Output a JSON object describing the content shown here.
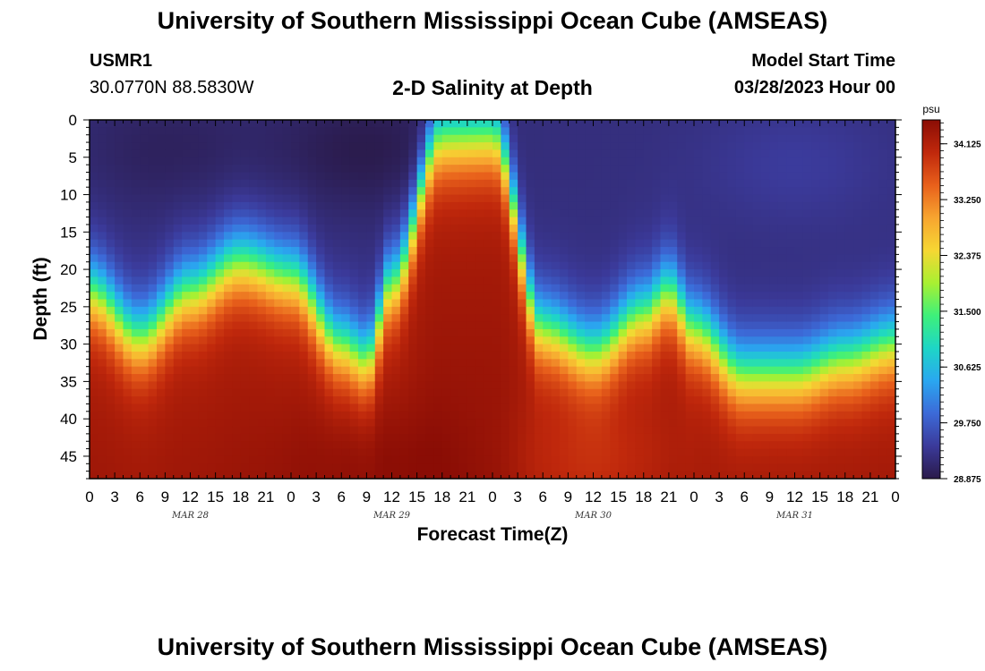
{
  "header": {
    "title": "University of Southern Mississippi Ocean Cube (AMSEAS)",
    "station": "USMR1",
    "coords": "30.0770N  88.5830W",
    "subtitle": "2-D Salinity at Depth",
    "model_start_label": "Model Start Time",
    "model_start_value": "03/28/2023 Hour 00"
  },
  "footer": {
    "title": "University of Southern Mississippi Ocean Cube (AMSEAS)"
  },
  "colors": {
    "palette": [
      "#2a1a4a",
      "#3b3a9a",
      "#3c6ad8",
      "#2aa7f0",
      "#1ed6c6",
      "#3ef07a",
      "#a8f032",
      "#f6d733",
      "#f7a530",
      "#e8601b",
      "#c0280c",
      "#8a0d05"
    ]
  },
  "chart_data": {
    "type": "heatmap",
    "title": "2-D Salinity at Depth",
    "xlabel": "Forecast Time(Z)",
    "ylabel": "Depth (ft)",
    "xlim": [
      0,
      96
    ],
    "ylim": [
      0,
      48
    ],
    "x_tick_values": [
      0,
      3,
      6,
      9,
      12,
      15,
      18,
      21,
      24,
      27,
      30,
      33,
      36,
      39,
      42,
      45,
      48,
      51,
      54,
      57,
      60,
      63,
      66,
      69,
      72,
      75,
      78,
      81,
      84,
      87,
      90,
      93,
      96
    ],
    "x_tick_labels": [
      "0",
      "3",
      "6",
      "9",
      "12",
      "15",
      "18",
      "21",
      "0",
      "3",
      "6",
      "9",
      "12",
      "15",
      "18",
      "21",
      "0",
      "3",
      "6",
      "9",
      "12",
      "15",
      "18",
      "21",
      "0",
      "3",
      "6",
      "9",
      "12",
      "15",
      "18",
      "21",
      "0"
    ],
    "y_tick_values": [
      0,
      5,
      10,
      15,
      20,
      25,
      30,
      35,
      40,
      45
    ],
    "y_tick_labels": [
      "0",
      "5",
      "10",
      "15",
      "20",
      "25",
      "30",
      "35",
      "40",
      "45"
    ],
    "date_labels": [
      {
        "x": 12,
        "label": "MAR 28"
      },
      {
        "x": 36,
        "label": "MAR 29"
      },
      {
        "x": 60,
        "label": "MAR 30"
      },
      {
        "x": 84,
        "label": "MAR 31"
      }
    ],
    "colorbar": {
      "unit": "psu",
      "min": 28.875,
      "max": 34.5,
      "ticks": [
        34.125,
        33.25,
        32.375,
        31.5,
        30.625,
        29.75,
        28.875
      ],
      "tick_labels": [
        "34.125",
        "33.250",
        "32.375",
        "31.500",
        "30.625",
        "29.750",
        "28.875"
      ]
    },
    "halocline": {
      "times": [
        0,
        6,
        12,
        18,
        24,
        30,
        33,
        36,
        42,
        48,
        54,
        60,
        66,
        69,
        72,
        78,
        84,
        90,
        96
      ],
      "depth_ft": [
        23,
        29,
        23,
        19,
        21,
        30,
        32,
        22,
        2,
        2,
        28,
        31,
        26,
        23,
        28,
        34,
        34,
        32,
        30
      ]
    },
    "salinity_psu": {
      "surface": 29.2,
      "bottom": 34.2,
      "low_pockets": [
        {
          "time": 9,
          "depth_ft": 4,
          "value": 29.0
        },
        {
          "time": 33,
          "depth_ft": 4,
          "value": 28.9
        },
        {
          "time": 84,
          "depth_ft": 6,
          "value": 29.4
        }
      ],
      "high_pockets": [
        {
          "time": 18,
          "depth_ft": 38,
          "value": 34.2
        },
        {
          "time": 33,
          "depth_ft": 46,
          "value": 34.4
        },
        {
          "time": 60,
          "depth_ft": 46,
          "value": 33.9
        }
      ]
    }
  }
}
